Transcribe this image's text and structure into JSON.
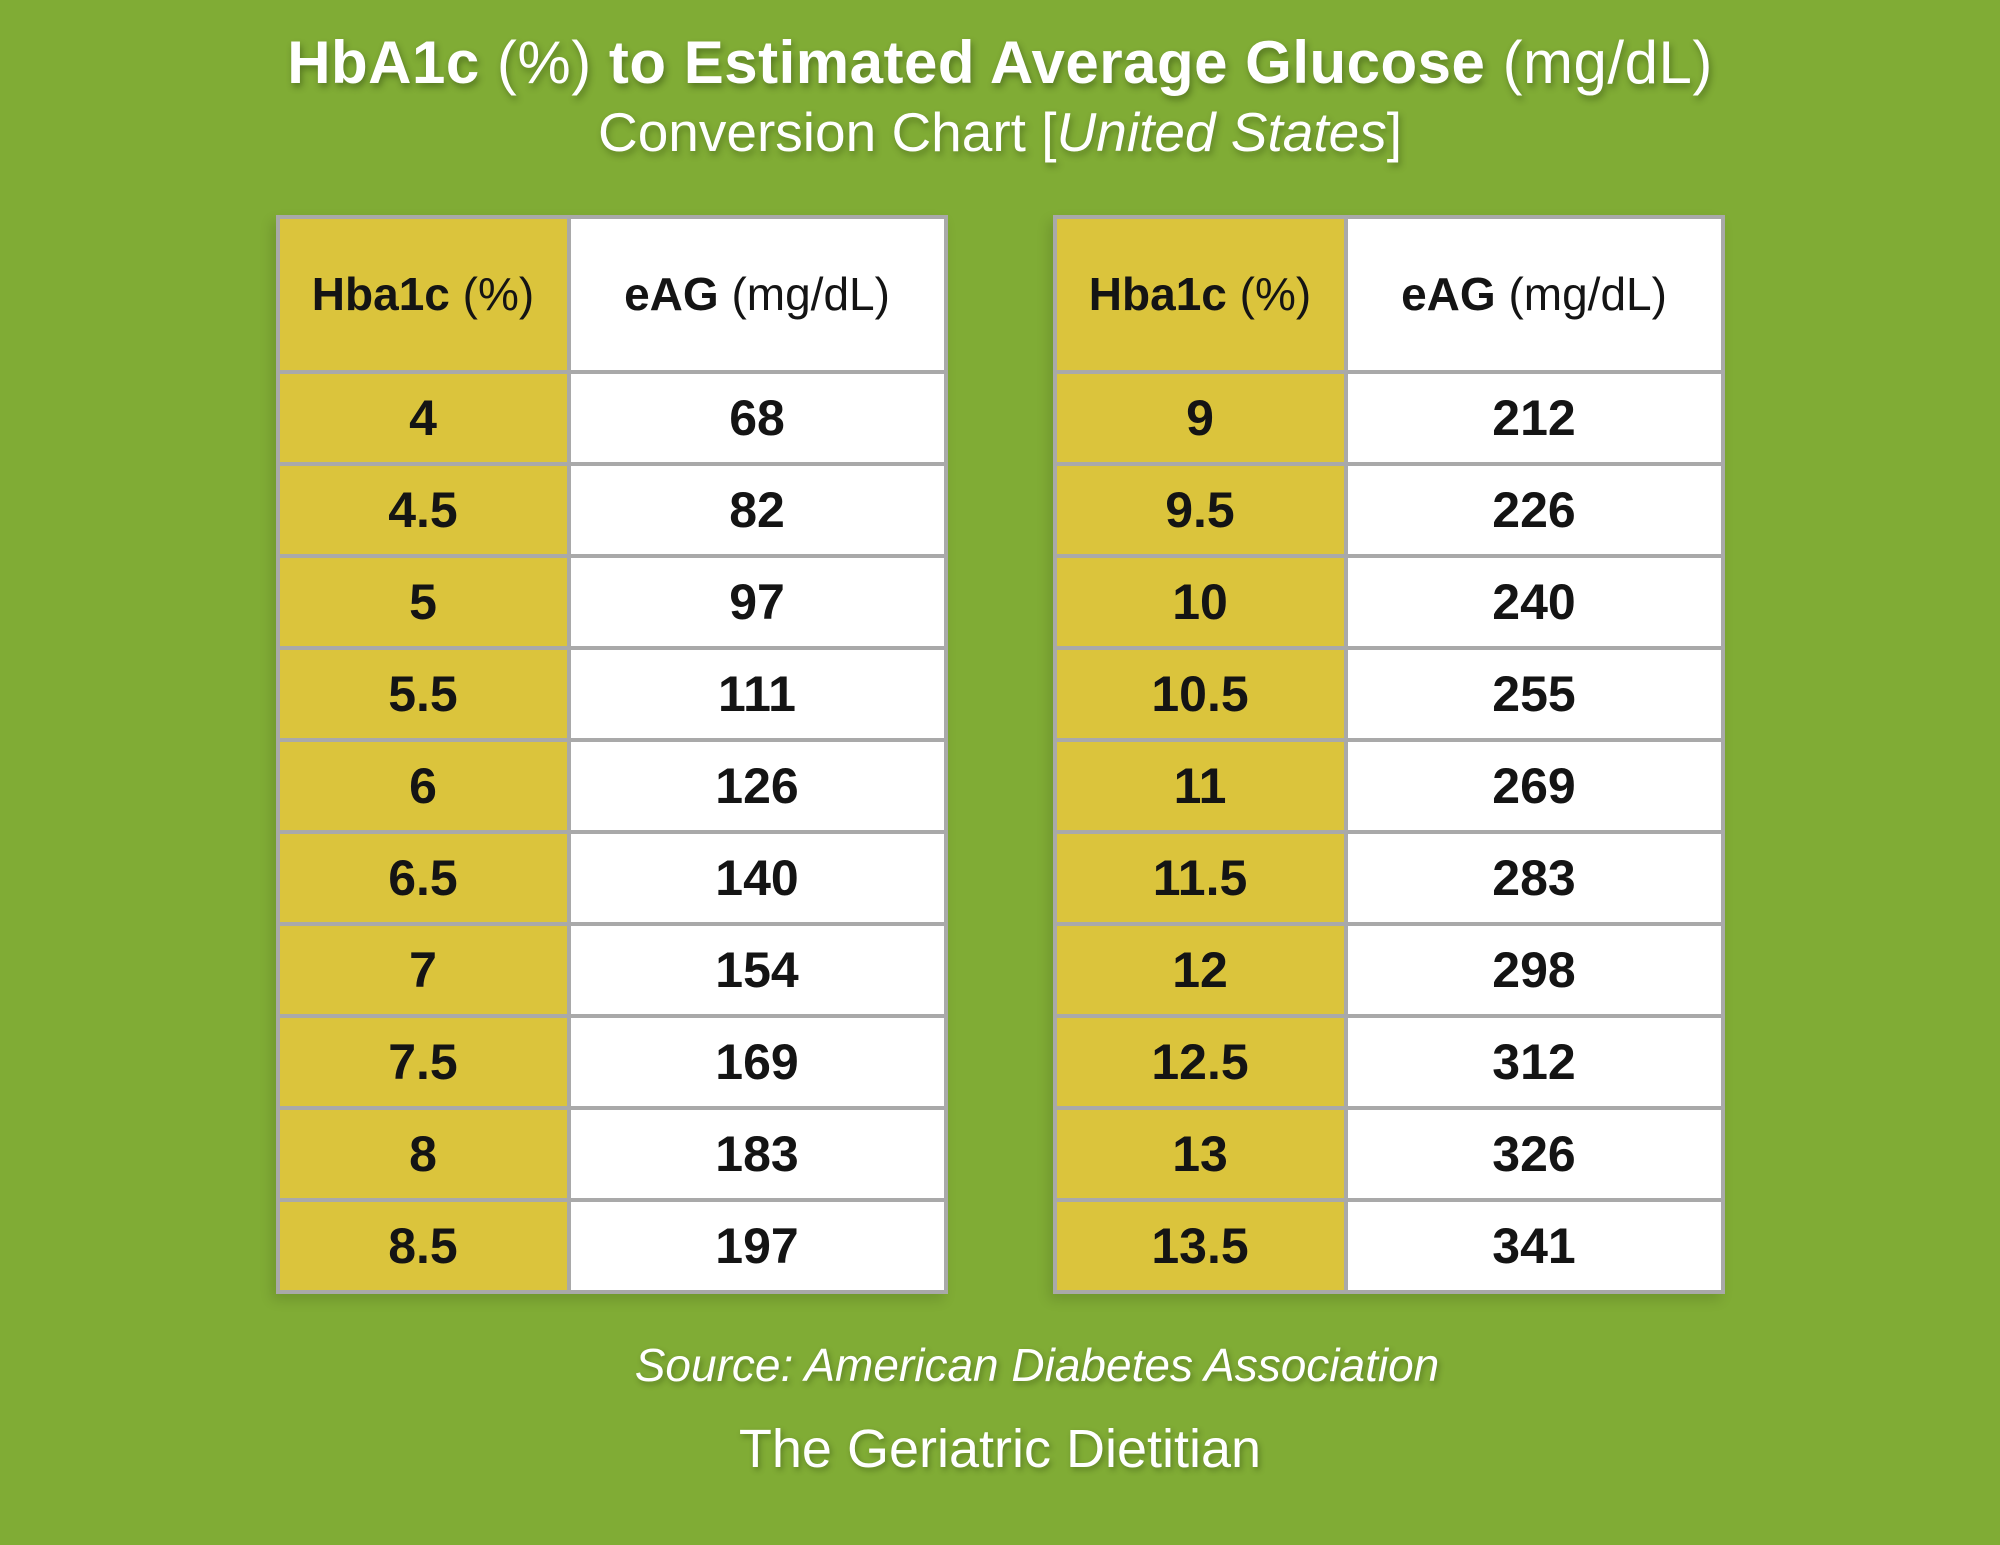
{
  "colors": {
    "bg": "#80AC35",
    "yellow": "#DBC43C",
    "border": "#A9A9A9",
    "ink": "#141414",
    "white": "#FFFFFF"
  },
  "title": {
    "full": "HbA1c (%) to Estimated Average Glucose (mg/dL)",
    "part1": "HbA1c",
    "unit1": "(%)",
    "part2": "to Estimated Average Glucose",
    "unit2": "(mg/dL)"
  },
  "subtitle": {
    "full": "Conversion Chart [United States]",
    "pre": "Conversion Chart [",
    "italic": "United States",
    "post": "]"
  },
  "table_header": {
    "col1_main": "Hba1c",
    "col1_unit": "(%)",
    "col2_main": "eAG",
    "col2_unit": "(mg/dL)"
  },
  "footer": {
    "source": "Source: American Diabetes Association",
    "brand": "The Geriatric Dietitian"
  },
  "chart_data": {
    "type": "table",
    "title": "HbA1c (%) to Estimated Average Glucose (mg/dL)",
    "subtitle": "Conversion Chart [United States]",
    "columns": [
      "Hba1c (%)",
      "eAG (mg/dL)"
    ],
    "tables": [
      {
        "rows": [
          [
            "4",
            "68"
          ],
          [
            "4.5",
            "82"
          ],
          [
            "5",
            "97"
          ],
          [
            "5.5",
            "111"
          ],
          [
            "6",
            "126"
          ],
          [
            "6.5",
            "140"
          ],
          [
            "7",
            "154"
          ],
          [
            "7.5",
            "169"
          ],
          [
            "8",
            "183"
          ],
          [
            "8.5",
            "197"
          ]
        ]
      },
      {
        "rows": [
          [
            "9",
            "212"
          ],
          [
            "9.5",
            "226"
          ],
          [
            "10",
            "240"
          ],
          [
            "10.5",
            "255"
          ],
          [
            "11",
            "269"
          ],
          [
            "11.5",
            "283"
          ],
          [
            "12",
            "298"
          ],
          [
            "12.5",
            "312"
          ],
          [
            "13",
            "326"
          ],
          [
            "13.5",
            "341"
          ]
        ]
      }
    ],
    "source": "Source: American Diabetes Association",
    "footer": "The Geriatric Dietitian"
  }
}
